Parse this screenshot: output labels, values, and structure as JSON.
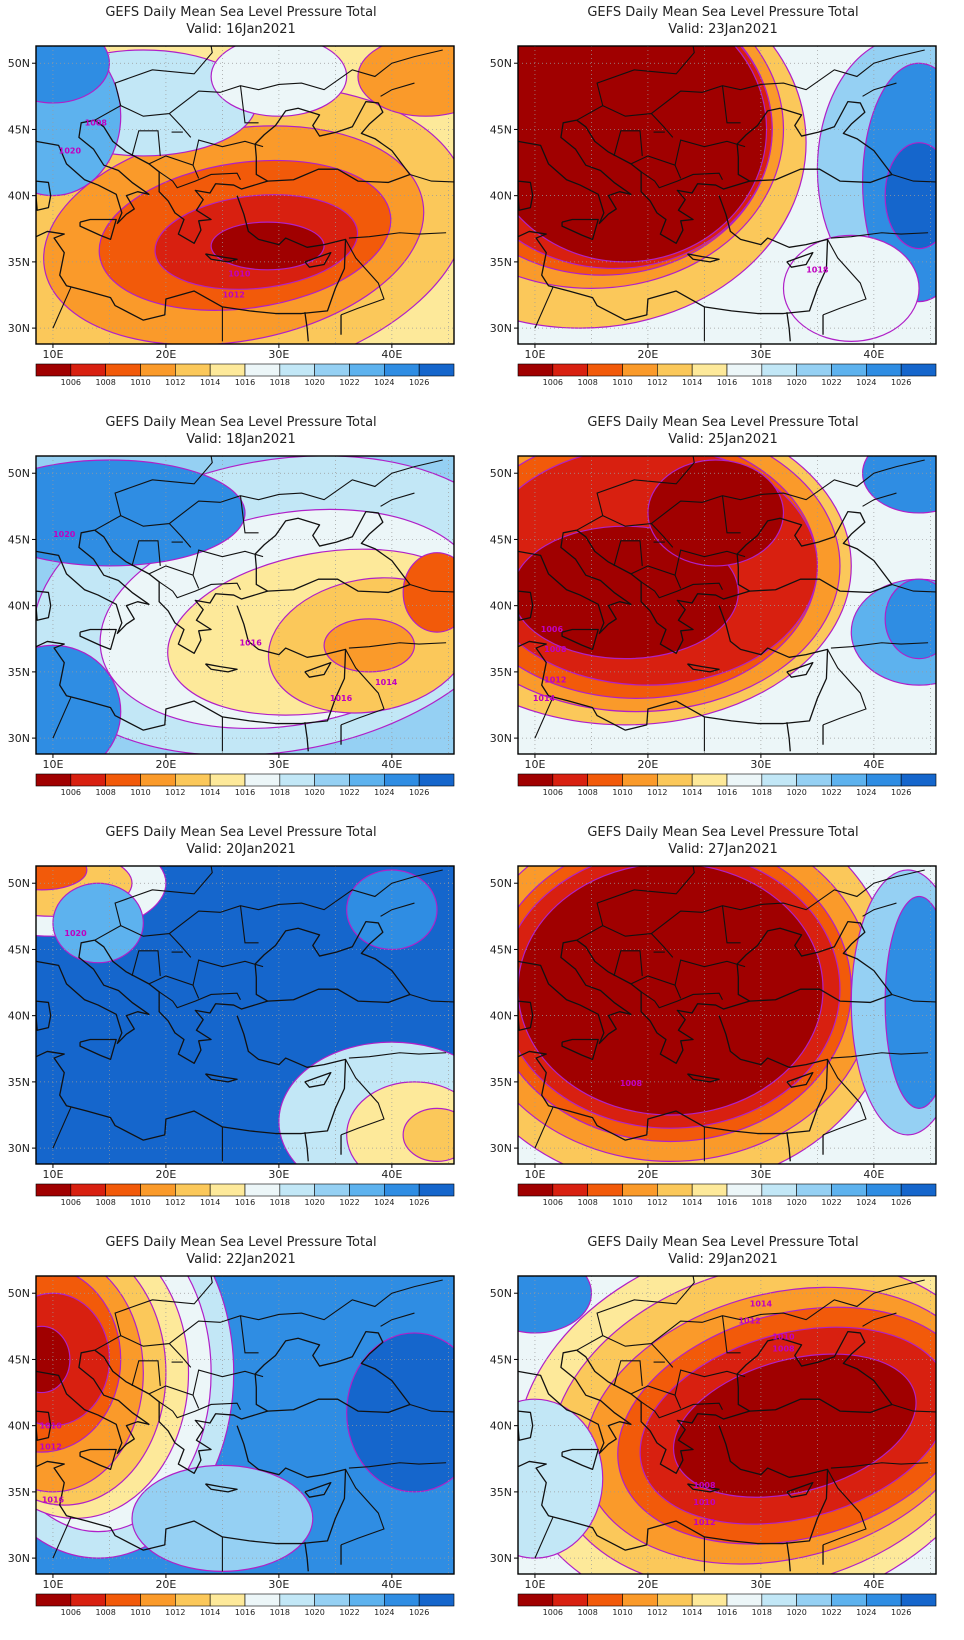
{
  "title_prefix": "GEFS Daily Mean Sea Level Pressure Total",
  "colorbar": {
    "labels": [
      "1006",
      "1008",
      "1010",
      "1012",
      "1014",
      "1016",
      "1018",
      "1020",
      "1022",
      "1024",
      "1026"
    ],
    "colors": [
      "#a00000",
      "#d82010",
      "#f25a0a",
      "#fa9a2a",
      "#fbc85a",
      "#fde99a",
      "#ecf6f8",
      "#c2e7f6",
      "#95d0f3",
      "#5db2ee",
      "#2f8de3",
      "#1566cc"
    ]
  },
  "axes": {
    "lat_labels": [
      "50N",
      "45N",
      "40N",
      "35N",
      "30N"
    ],
    "lon_labels": [
      "10E",
      "20E",
      "30E",
      "40E"
    ]
  },
  "panels": [
    {
      "title": "GEFS Daily Mean Sea Level Pressure Total",
      "valid": "Valid: 16Jan2021",
      "pattern": "low_center",
      "iso_labels": [
        "1020",
        "1008",
        "1010",
        "1012"
      ]
    },
    {
      "title": "GEFS Daily Mean Sea Level Pressure Total",
      "valid": "Valid: 23Jan2021",
      "pattern": "low_west",
      "iso_labels": [
        "1018"
      ]
    },
    {
      "title": "GEFS Daily Mean Sea Level Pressure Total",
      "valid": "Valid: 18Jan2021",
      "pattern": "high_general",
      "iso_labels": [
        "1020",
        "1016",
        "1014",
        "1016"
      ]
    },
    {
      "title": "GEFS Daily Mean Sea Level Pressure Total",
      "valid": "Valid: 25Jan2021",
      "pattern": "low_west2",
      "iso_labels": [
        "1006",
        "1008",
        "1012",
        "1014"
      ]
    },
    {
      "title": "GEFS Daily Mean Sea Level Pressure Total",
      "valid": "Valid: 20Jan2021",
      "pattern": "high_strong",
      "iso_labels": [
        "1020"
      ]
    },
    {
      "title": "GEFS Daily Mean Sea Level Pressure Total",
      "valid": "Valid: 27Jan2021",
      "pattern": "low_big",
      "iso_labels": [
        "1008"
      ]
    },
    {
      "title": "GEFS Daily Mean Sea Level Pressure Total",
      "valid": "Valid: 22Jan2021",
      "pattern": "low_nw",
      "iso_labels": [
        "1010",
        "1012",
        "1016"
      ]
    },
    {
      "title": "GEFS Daily Mean Sea Level Pressure Total",
      "valid": "Valid: 29Jan2021",
      "pattern": "low_east",
      "iso_labels": [
        "1014",
        "1012",
        "1010",
        "1008",
        "1008",
        "1010",
        "1012"
      ]
    }
  ]
}
